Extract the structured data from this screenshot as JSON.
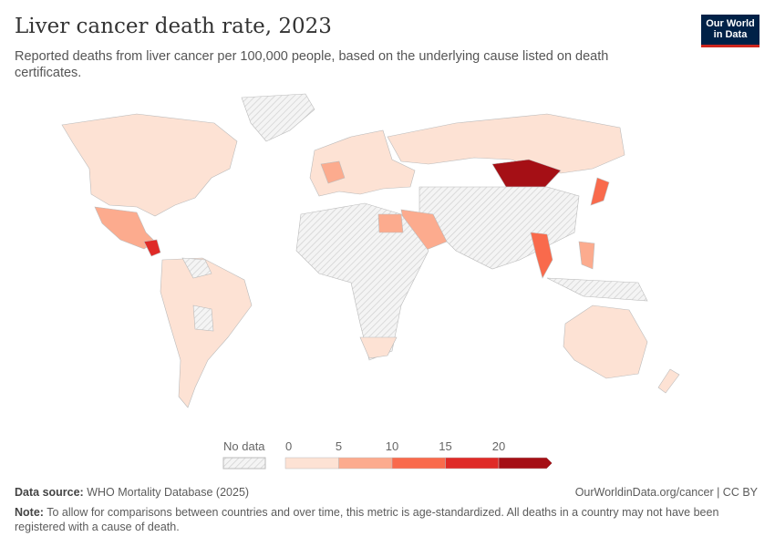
{
  "header": {
    "title": "Liver cancer death rate, 2023",
    "subtitle": "Reported deaths from liver cancer per 100,000 people, based on the underlying cause listed on death certificates.",
    "logo": "Our World in Data"
  },
  "legend": {
    "no_data_label": "No data",
    "ticks": [
      "0",
      "5",
      "10",
      "15",
      "20"
    ],
    "bins": [
      {
        "range": "0-5",
        "color": "#fde2d4"
      },
      {
        "range": "5-10",
        "color": "#fcab8e"
      },
      {
        "range": "10-15",
        "color": "#f96a4c"
      },
      {
        "range": "15-20",
        "color": "#df2a27"
      },
      {
        "range": ">20",
        "color": "#a50f15"
      }
    ],
    "no_data_color": "#e8e8e8"
  },
  "footer": {
    "source_label": "Data source:",
    "source": "WHO Mortality Database (2025)",
    "url": "OurWorldinData.org/cancer | CC BY",
    "note_label": "Note:",
    "note": "To allow for comparisons between countries and over time, this metric is age-standardized. All deaths in a country may not have been registered with a cause of death."
  }
}
